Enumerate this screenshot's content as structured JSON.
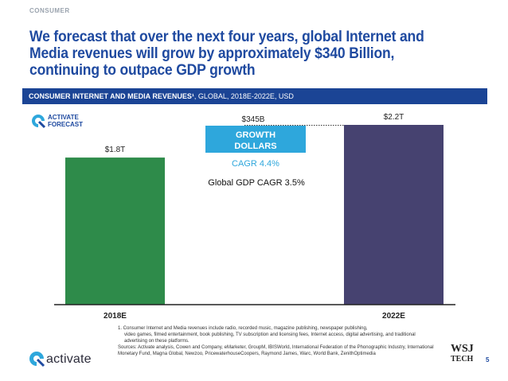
{
  "section_tag": "CONSUMER",
  "headline": "We forecast that over the next four years, global Internet and Media revenues will grow by approximately $340 Billion, continuing to outpace GDP growth",
  "banner": {
    "bold": "CONSUMER INTERNET AND MEDIA REVENUES¹",
    "rest": ", GLOBAL, 2018E-2022E, USD"
  },
  "badge": {
    "line1": "ACTIVATE",
    "line2": "FORECAST"
  },
  "chart_data": {
    "type": "bar",
    "categories": [
      "2018E",
      "2022E"
    ],
    "values": [
      1.8,
      2.2
    ],
    "value_labels": [
      "$1.8T",
      "$2.2T"
    ],
    "ylim": [
      0,
      2.2
    ],
    "growth": {
      "label": "$345B",
      "box_line1": "GROWTH",
      "box_line2": "DOLLARS"
    },
    "annotations": [
      "CAGR 4.4%",
      "Global GDP CAGR 3.5%"
    ],
    "colors": {
      "bar_2018": "#2e8b4a",
      "bar_2022": "#464270",
      "growth_box": "#2ea7dc",
      "cagr_text": "#2ea7dc"
    }
  },
  "footnotes": {
    "note1_first": "1. Consumer Internet and Media revenues include radio, recorded music, magazine publishing, newspaper publishing,",
    "note1_rest": "video games, filmed entertainment, book publishing, TV subscription and licensing fees, Internet access, digital advertising, and traditional advertising on these platforms.",
    "sources": "Sources: Activate analysis, Cowen and Company, eMarketer, GroupM, IBISWorld, International Federation of the Phonographic Industry, International Monetary Fund, Magna Global, Newzoo, PricewaterhouseCoopers, Raymond James, Warc, World Bank, ZenithOptimedia"
  },
  "logo": {
    "text": "activate"
  },
  "wsj": {
    "top": "WSJ",
    "bottom": "TECH"
  },
  "page_number": "5"
}
